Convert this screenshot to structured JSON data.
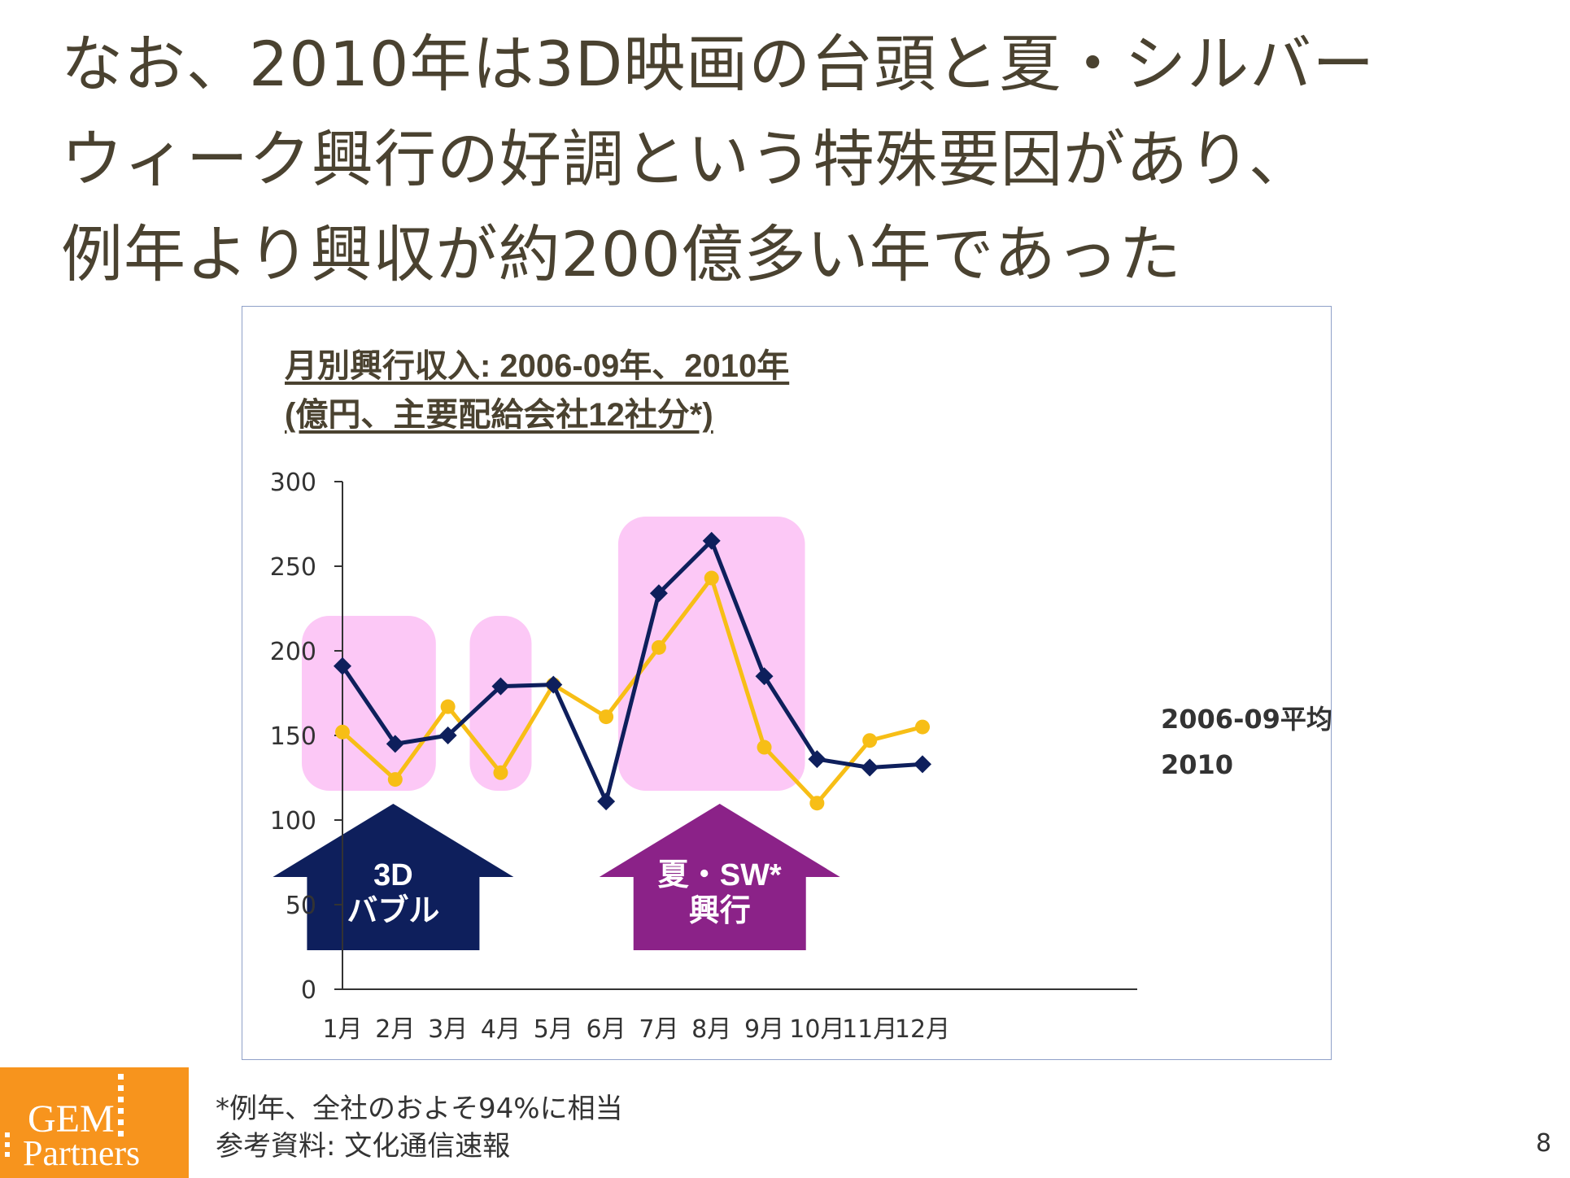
{
  "headline": {
    "line1": "なお、2010年は3D映画の台頭と夏・シルバー",
    "line2": "ウィーク興行の好調という特殊要因があり、",
    "line3": "例年より興収が約200億多い年であった"
  },
  "chart_title": {
    "line1": "月別興行収入: 2006-09年、2010年",
    "line2": "(億円、主要配給会社12社分*)"
  },
  "chart_data": {
    "type": "line",
    "categories": [
      "1月",
      "2月",
      "3月",
      "4月",
      "5月",
      "6月",
      "7月",
      "8月",
      "9月",
      "10月",
      "11月",
      "12月"
    ],
    "ylim": [
      0,
      300
    ],
    "yticks": [
      0,
      50,
      100,
      150,
      200,
      250,
      300
    ],
    "grid": false,
    "legend": "right (end-of-line labels)",
    "series": [
      {
        "name": "2006-09平均",
        "color": "#f7be16",
        "marker": "circle",
        "values": [
          152,
          124,
          167,
          128,
          180,
          161,
          202,
          243,
          143,
          110,
          147,
          155
        ]
      },
      {
        "name": "2010",
        "color": "#0e1f5c",
        "marker": "diamond",
        "values": [
          191,
          145,
          150,
          179,
          180,
          111,
          234,
          265,
          185,
          136,
          131,
          133
        ]
      }
    ],
    "highlights": [
      {
        "from": "1月",
        "to": "2月",
        "color": "#fcc8f6"
      },
      {
        "from": "4月",
        "to": "4月",
        "color": "#fcc8f6"
      },
      {
        "from": "7月",
        "to": "9月",
        "color": "#fcc8f6"
      }
    ],
    "annotations": [
      {
        "line1": "3D",
        "line2": "バブル",
        "color": "#0e1f5c"
      },
      {
        "line1": "夏・SW*",
        "line2": "興行",
        "color": "#8b2288"
      }
    ]
  },
  "footnote": {
    "line1": "*例年、全社のおよそ94%に相当",
    "line2": "参考資料: 文化通信速報"
  },
  "logo": {
    "line1": "GEM",
    "line2": "Partners"
  },
  "page_number": "8"
}
